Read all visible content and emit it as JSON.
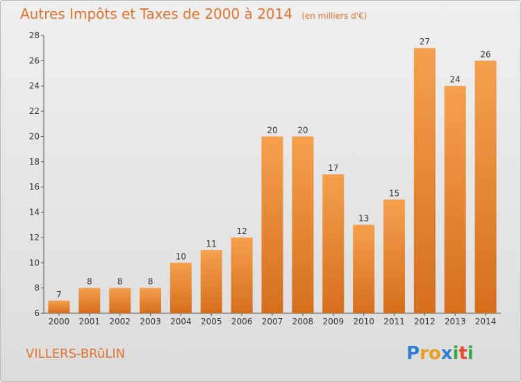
{
  "chart_data": {
    "type": "bar",
    "title": "Autres Impôts et Taxes de 2000 à 2014",
    "subtitle": "(en milliers d'€)",
    "categories": [
      "2000",
      "2001",
      "2002",
      "2003",
      "2004",
      "2005",
      "2006",
      "2007",
      "2008",
      "2009",
      "2010",
      "2011",
      "2012",
      "2013",
      "2014"
    ],
    "values": [
      7,
      8,
      8,
      8,
      10,
      11,
      12,
      20,
      20,
      17,
      13,
      15,
      27,
      24,
      26
    ],
    "ylim": [
      6,
      28
    ],
    "yticks": [
      "6",
      "8",
      "10",
      "12",
      "14",
      "16",
      "18",
      "20",
      "22",
      "24",
      "26",
      "28"
    ],
    "grid": false,
    "bar_color_top": "#f5a04e",
    "bar_color_bottom": "#d46f1c"
  },
  "commune": "VILLERS-BRûLIN",
  "logo": {
    "letters": [
      "P",
      "r",
      "o",
      "x",
      "i",
      "t",
      "i"
    ],
    "colors": [
      "#2f7fd0",
      "#e8a020",
      "#e8a020",
      "#2f7fd0",
      "#39a847",
      "#e84b2a",
      "#39a847"
    ]
  }
}
